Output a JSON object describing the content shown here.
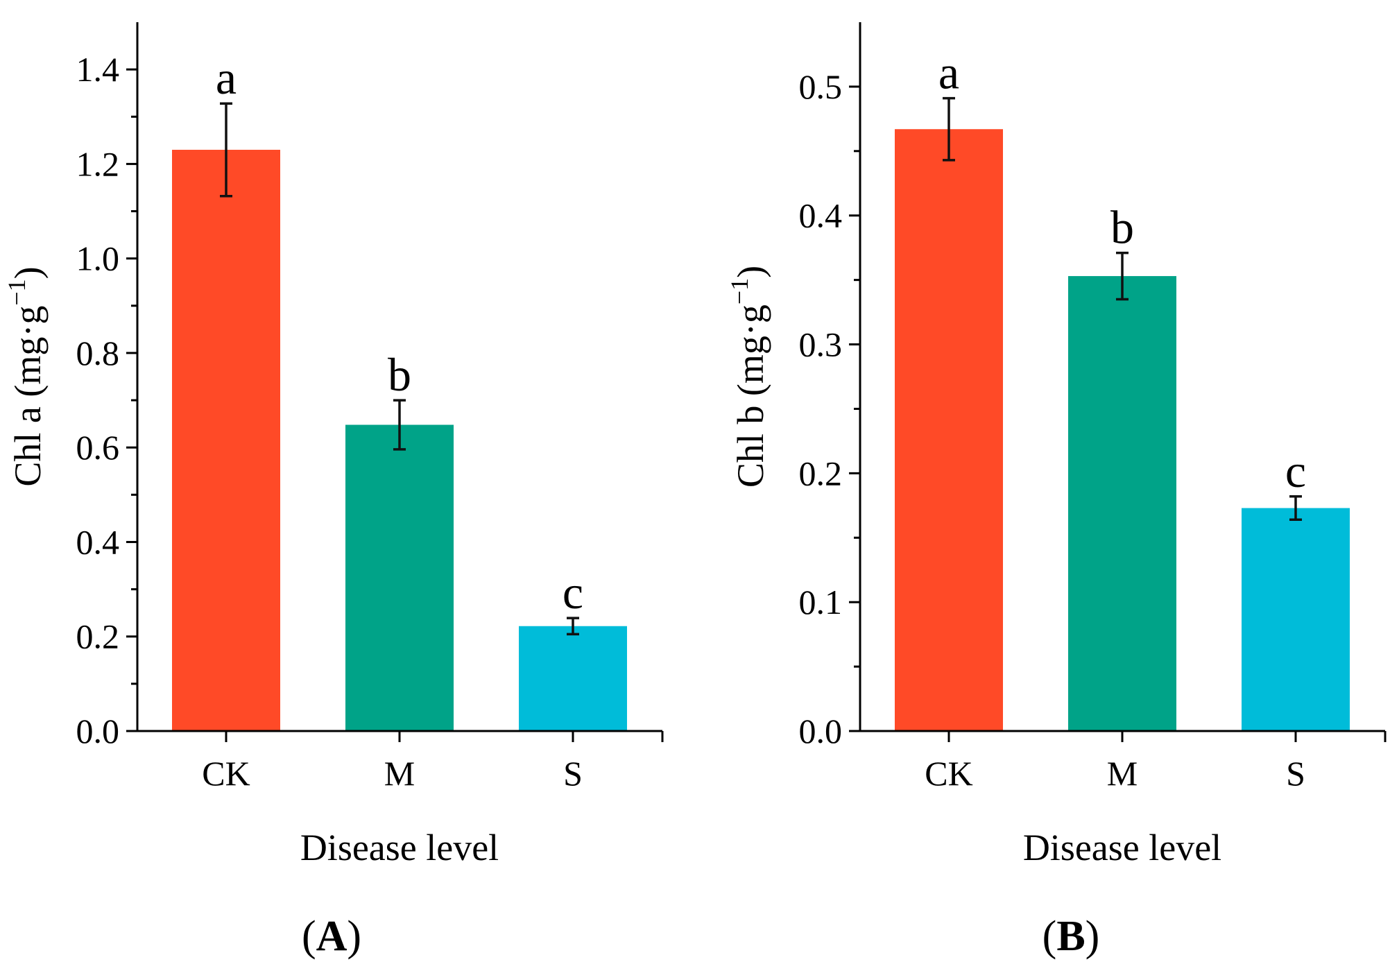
{
  "chart_data": [
    {
      "type": "bar",
      "panel_label": "A",
      "categories": [
        "CK",
        "M",
        "S"
      ],
      "values": [
        1.23,
        0.648,
        0.222
      ],
      "error": [
        0.098,
        0.052,
        0.017
      ],
      "sig_letters": [
        "a",
        "b",
        "c"
      ],
      "xlabel": "Disease level",
      "ylabel_parts": {
        "main": "Chl a (mg·g",
        "sup": "−1",
        "close": ")"
      },
      "ylim": [
        0,
        1.5
      ],
      "yticks": [
        0.0,
        0.2,
        0.4,
        0.6,
        0.8,
        1.0,
        1.2,
        1.4
      ],
      "ytick_labels": [
        "0.0",
        "0.2",
        "0.4",
        "0.6",
        "0.8",
        "1.0",
        "1.2",
        "1.4"
      ],
      "grid": false,
      "bar_colors": [
        "#ff4a27",
        "#00a388",
        "#00bcd9"
      ]
    },
    {
      "type": "bar",
      "panel_label": "B",
      "categories": [
        "CK",
        "M",
        "S"
      ],
      "values": [
        0.467,
        0.353,
        0.173
      ],
      "error": [
        0.024,
        0.018,
        0.009
      ],
      "sig_letters": [
        "a",
        "b",
        "c"
      ],
      "xlabel": "Disease level",
      "ylabel_parts": {
        "main": "Chl b (mg·g",
        "sup": "−1",
        "close": ")"
      },
      "ylim": [
        0,
        0.55
      ],
      "yticks": [
        0.0,
        0.1,
        0.2,
        0.3,
        0.4,
        0.5
      ],
      "ytick_labels": [
        "0.0",
        "0.1",
        "0.2",
        "0.3",
        "0.4",
        "0.5"
      ],
      "grid": false,
      "bar_colors": [
        "#ff4a27",
        "#00a388",
        "#00bcd9"
      ]
    }
  ]
}
